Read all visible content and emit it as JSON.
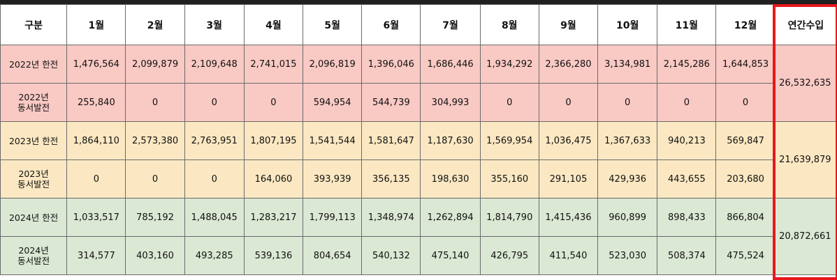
{
  "headers": [
    "구분",
    "1월",
    "2월",
    "3월",
    "4월",
    "5월",
    "6월",
    "7월",
    "8월",
    "9월",
    "10월",
    "11월",
    "12월",
    "연간수입"
  ],
  "rows": [
    {
      "label_line1": "2022년 한전",
      "label_line2": "",
      "values": [
        "1,476,564",
        "2,099,879",
        "2,109,648",
        "2,741,015",
        "2,096,819",
        "1,396,046",
        "1,686,446",
        "1,934,292",
        "2,366,280",
        "3,134,981",
        "2,145,286",
        "1,644,853"
      ]
    },
    {
      "label_line1": "2022년",
      "label_line2": "동서발전",
      "values": [
        "255,840",
        "0",
        "0",
        "0",
        "594,954",
        "544,739",
        "304,993",
        "0",
        "0",
        "0",
        "0",
        "0"
      ]
    },
    {
      "label_line1": "2023년 한전",
      "label_line2": "",
      "values": [
        "1,864,110",
        "2,573,380",
        "2,763,951",
        "1,807,195",
        "1,541,544",
        "1,581,647",
        "1,187,630",
        "1,569,954",
        "1,036,475",
        "1,367,633",
        "940,213",
        "569,847"
      ]
    },
    {
      "label_line1": "2023년",
      "label_line2": "동서발전",
      "values": [
        "0",
        "0",
        "0",
        "164,060",
        "393,939",
        "356,135",
        "198,630",
        "355,160",
        "291,105",
        "429,936",
        "443,655",
        "203,680"
      ]
    },
    {
      "label_line1": "2024년 한전",
      "label_line2": "",
      "values": [
        "1,033,517",
        "785,192",
        "1,488,045",
        "1,283,217",
        "1,799,113",
        "1,348,974",
        "1,262,894",
        "1,814,790",
        "1,415,436",
        "960,899",
        "898,433",
        "866,804"
      ]
    },
    {
      "label_line1": "2024년",
      "label_line2": "동서발전",
      "values": [
        "314,577",
        "403,160",
        "493,285",
        "539,136",
        "804,654",
        "540,132",
        "475,140",
        "426,795",
        "411,540",
        "523,030",
        "508,374",
        "475,524"
      ]
    }
  ],
  "annual_totals": {
    "y2022": "26,532,635",
    "y2023": "21,639,879",
    "y2024": "20,872,661"
  },
  "colors": {
    "row_2022": "#f9c9c4",
    "row_2023": "#fbe8c2",
    "row_2024": "#dbe8d4",
    "highlight_border": "#e8171b"
  }
}
